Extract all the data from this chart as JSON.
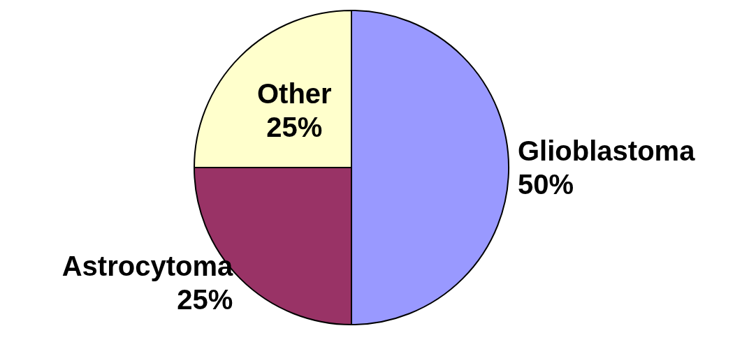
{
  "chart_data": {
    "type": "pie",
    "categories": [
      "Glioblastoma",
      "Astrocytoma",
      "Other"
    ],
    "values": [
      50,
      25,
      25
    ],
    "colors": [
      "#9999ff",
      "#993366",
      "#ffffcc"
    ],
    "value_labels": [
      "50%",
      "25%",
      "25%"
    ]
  }
}
